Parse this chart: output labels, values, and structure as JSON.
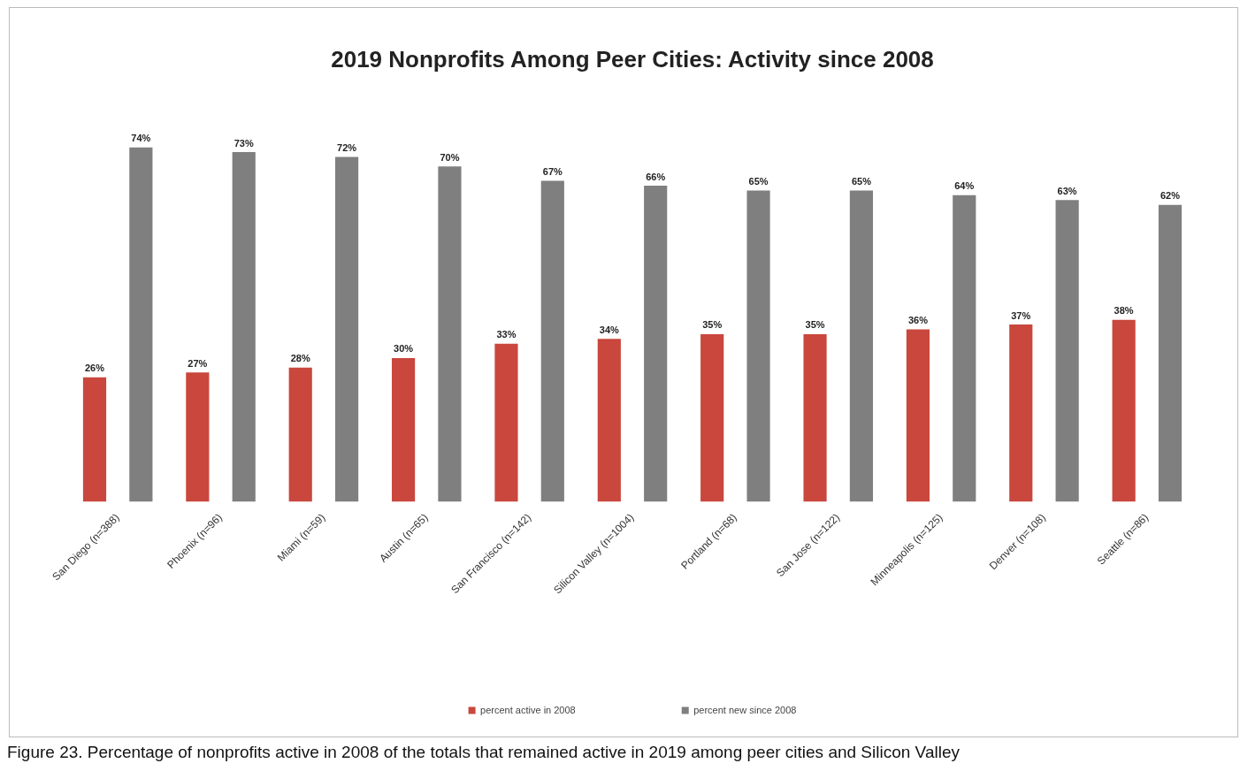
{
  "chart_data": {
    "type": "bar",
    "title": "2019 Nonprofits Among Peer Cities: Activity since 2008",
    "categories": [
      "San Diego (n=388)",
      "Phoenix (n=96)",
      "Miami (n=59)",
      "Austin (n=65)",
      "San Francisco (n=142)",
      "Silicon Valley (n=1004)",
      "Portland (n=68)",
      "San Jose (n=122)",
      "Minneapolis (n=125)",
      "Denver (n=108)",
      "Seattle (n=86)"
    ],
    "series": [
      {
        "name": "percent active in 2008",
        "color": "#c9473d",
        "values": [
          26,
          27,
          28,
          30,
          33,
          34,
          35,
          35,
          36,
          37,
          38
        ],
        "value_labels": [
          "26%",
          "27%",
          "28%",
          "30%",
          "33%",
          "34%",
          "35%",
          "35%",
          "36%",
          "37%",
          "38%"
        ]
      },
      {
        "name": "percent new since 2008",
        "color": "#7f7f7f",
        "values": [
          74,
          73,
          72,
          70,
          67,
          66,
          65,
          65,
          64,
          63,
          62
        ],
        "value_labels": [
          "74%",
          "73%",
          "72%",
          "70%",
          "67%",
          "66%",
          "65%",
          "65%",
          "64%",
          "63%",
          "62%"
        ]
      }
    ],
    "grid": false,
    "legend": "bottom",
    "annotations": [
      "Figure 23. Percentage of nonprofits active in 2008 of the totals  that remained active in 2019 among peer cities and Silicon Valley"
    ]
  }
}
